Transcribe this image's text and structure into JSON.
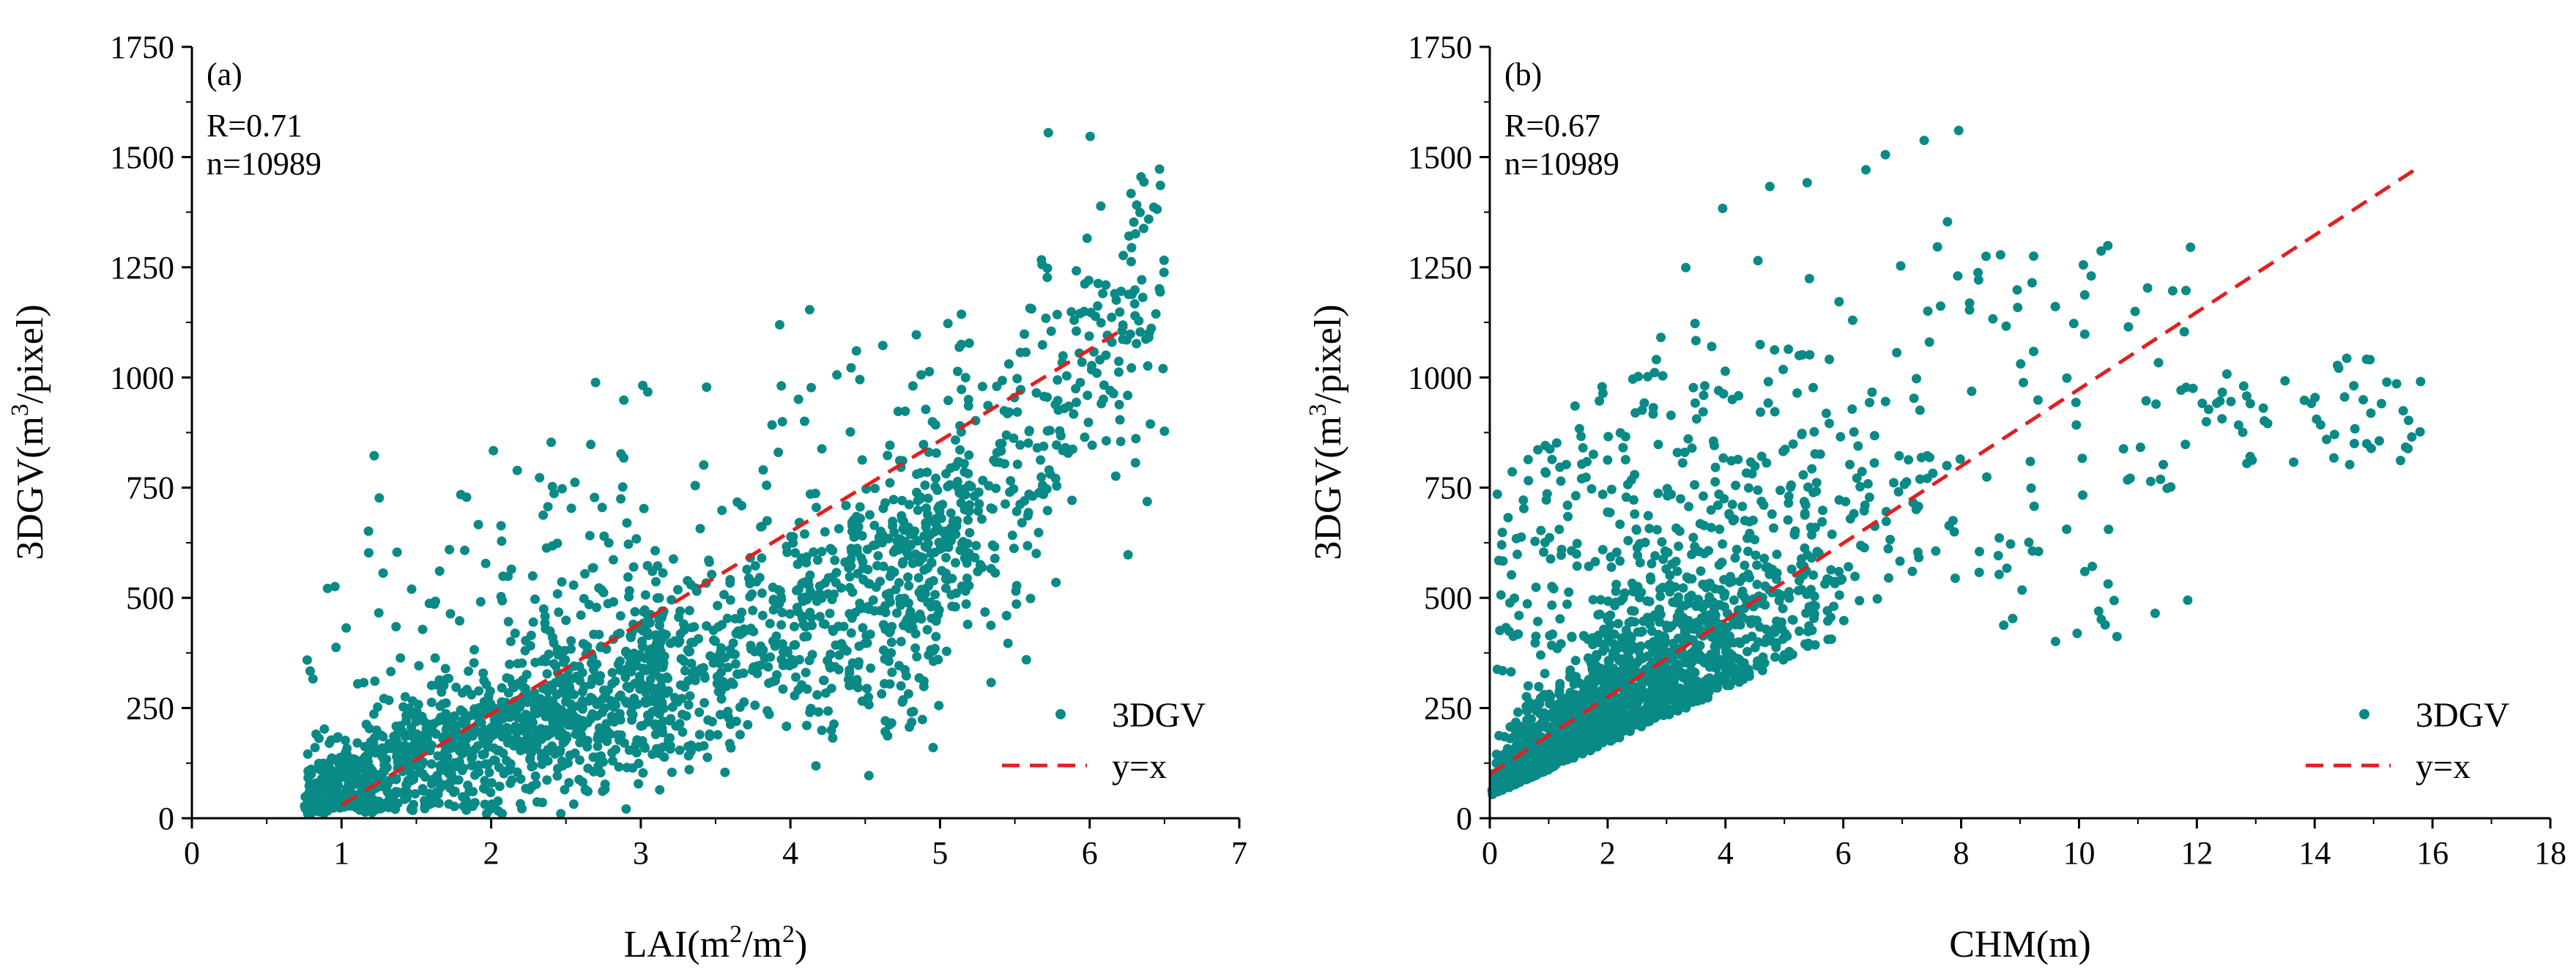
{
  "colors": {
    "point": "#0a8a86",
    "fit_line": "#e02020",
    "axis": "#000000"
  },
  "chart_data": [
    {
      "type": "scatter",
      "panel_label": "(a)",
      "stats": [
        "R=0.71",
        "n=10989"
      ],
      "xlabel": {
        "pre": "LAI(m",
        "sup": "2",
        "mid": "/m",
        "sup2": "2",
        "post": ")"
      },
      "ylabel": {
        "pre": "3DGV(m",
        "sup": "3",
        "post": "/pixel)"
      },
      "xlim": [
        0,
        7
      ],
      "ylim": [
        0,
        1750
      ],
      "xticks": [
        0,
        1,
        2,
        3,
        4,
        5,
        6,
        7
      ],
      "yticks": [
        0,
        250,
        500,
        750,
        1000,
        1250,
        1500,
        1750
      ],
      "xtick_labels": [
        "0",
        "1",
        "2",
        "3",
        "4",
        "5",
        "6",
        "7"
      ],
      "ytick_labels": [
        "0",
        "250",
        "500",
        "750",
        "1000",
        "1250",
        "1500",
        "1750"
      ],
      "series": [
        {
          "name": "3DGV",
          "kind": "scatter",
          "n": 10989,
          "x_range": [
            0.7,
            6.5
          ],
          "y_range": [
            0,
            1580
          ],
          "trend": {
            "from": [
              0.7,
              30
            ],
            "to": [
              6.5,
              1200
            ]
          }
        },
        {
          "name": "y=x",
          "kind": "dashed-line",
          "x": [
            1.0,
            6.25
          ],
          "y": [
            30,
            1115
          ]
        }
      ],
      "legend": {
        "position": "bottom-right",
        "entries": [
          "3DGV",
          "y=x"
        ]
      }
    },
    {
      "type": "scatter",
      "panel_label": "(b)",
      "stats": [
        "R=0.67",
        "n=10989"
      ],
      "xlabel": {
        "pre": "CHM(m)",
        "sup": "",
        "mid": "",
        "sup2": "",
        "post": ""
      },
      "ylabel": {
        "pre": "3DGV(m",
        "sup": "3",
        "post": "/pixel)"
      },
      "xlim": [
        0,
        18
      ],
      "ylim": [
        0,
        1750
      ],
      "xticks": [
        0,
        2,
        4,
        6,
        8,
        10,
        12,
        14,
        16,
        18
      ],
      "yticks": [
        0,
        250,
        500,
        750,
        1000,
        1250,
        1500,
        1750
      ],
      "xtick_labels": [
        "0",
        "2",
        "4",
        "6",
        "8",
        "10",
        "12",
        "14",
        "16",
        "18"
      ],
      "ytick_labels": [
        "0",
        "250",
        "500",
        "750",
        "1000",
        "1250",
        "1500",
        "1750"
      ],
      "series": [
        {
          "name": "3DGV",
          "kind": "scatter",
          "n": 10989,
          "x_range": [
            0,
            15.8
          ],
          "y_range": [
            0,
            1580
          ],
          "trend": {
            "from": [
              0,
              60
            ],
            "to": [
              8,
              620
            ]
          }
        },
        {
          "name": "y=x",
          "kind": "dashed-line",
          "x": [
            0,
            15.8
          ],
          "y": [
            100,
            1480
          ]
        }
      ],
      "legend": {
        "position": "bottom-right",
        "entries": [
          "3DGV",
          "y=x"
        ]
      }
    }
  ]
}
